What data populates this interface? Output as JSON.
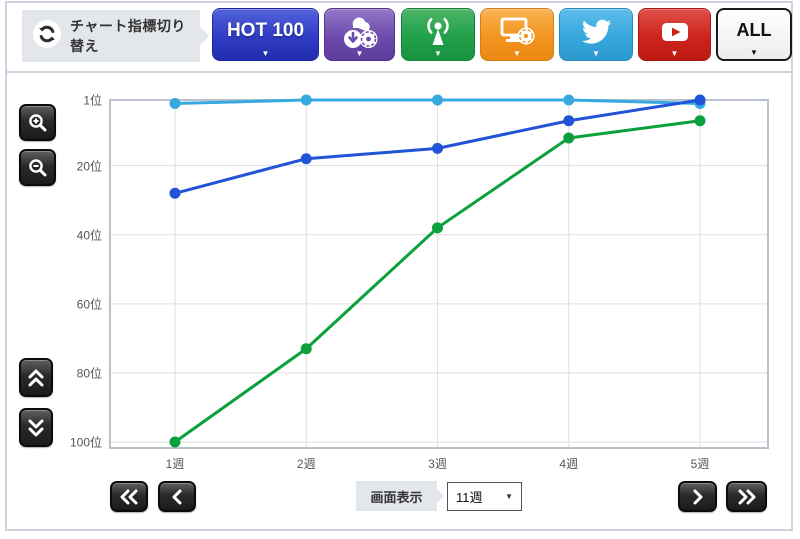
{
  "header": {
    "switch_label": "チャート指標切り替え",
    "buttons": {
      "hot100": {
        "label": "HOT 100",
        "color": "#2f3cc4"
      },
      "sales": {
        "icon": "sales-icon",
        "color": "#6c4aab"
      },
      "airplay": {
        "icon": "radio-tower-icon",
        "color": "#22a04a"
      },
      "lookup": {
        "icon": "monitor-disc-icon",
        "color": "#f2951f"
      },
      "twitter": {
        "icon": "twitter-bird-icon",
        "color": "#38a8dd"
      },
      "youtube": {
        "icon": "youtube-play-icon",
        "color": "#cc241d"
      },
      "all": {
        "label": "ALL",
        "color": "#ffffff"
      }
    }
  },
  "side_controls": {
    "zoom_in": "zoom-in-icon",
    "zoom_out": "zoom-out-icon",
    "scroll_up": "double-chevron-up-icon",
    "scroll_down": "double-chevron-down-icon"
  },
  "footer": {
    "display_label": "画面表示",
    "display_value": "11週",
    "prev_fast": "double-chevron-left-icon",
    "prev": "chevron-left-icon",
    "next": "chevron-right-icon",
    "next_fast": "double-chevron-right-icon"
  },
  "chart_data": {
    "type": "line",
    "title": "",
    "x_categories": [
      "1週",
      "2週",
      "3週",
      "4週",
      "5週"
    ],
    "y_ticks": [
      "1位",
      "20位",
      "40位",
      "60位",
      "80位",
      "100位"
    ],
    "y_tick_ranks": [
      1,
      20,
      40,
      60,
      80,
      100
    ],
    "ylim": [
      1,
      100
    ],
    "y_inverted": true,
    "grid": true,
    "legend": "none",
    "series": [
      {
        "name": "light-blue",
        "color": "#36a9e1",
        "values": [
          2,
          1,
          1,
          1,
          2
        ]
      },
      {
        "name": "green",
        "color": "#0aa03c",
        "values": [
          100,
          73,
          38,
          12,
          7
        ]
      },
      {
        "name": "blue",
        "color": "#2153d6",
        "values": [
          28,
          18,
          15,
          7,
          1
        ]
      }
    ],
    "colors": {
      "grid": "#dcdfe3",
      "plot_border": "#b9c2cc",
      "tick_text": "#555555"
    }
  }
}
